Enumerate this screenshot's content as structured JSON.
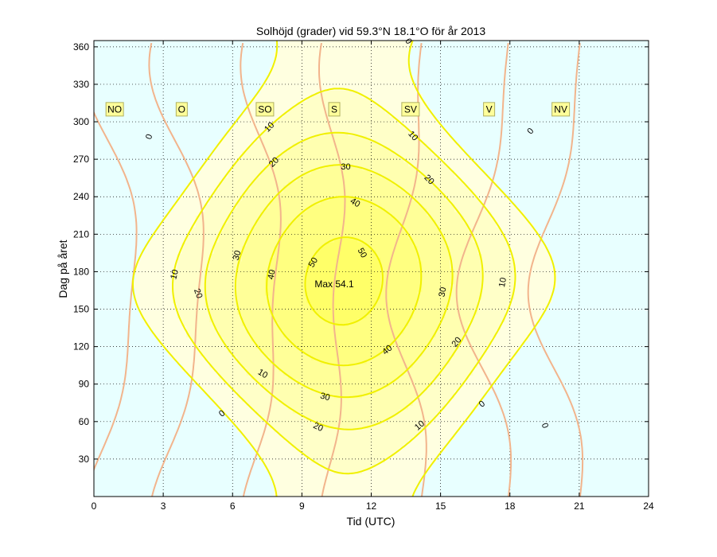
{
  "chart_data": {
    "type": "contour",
    "title": "Solhöjd (grader) vid 59.3°N 18.1°O för år 2013",
    "xlabel": "Tid (UTC)",
    "ylabel": "Dag på året",
    "xlim": [
      0,
      24
    ],
    "ylim": [
      0,
      365
    ],
    "xticks": [
      0,
      3,
      6,
      9,
      12,
      15,
      18,
      21,
      24
    ],
    "yticks": [
      30,
      60,
      90,
      120,
      150,
      180,
      210,
      240,
      270,
      300,
      330,
      360
    ],
    "grid": true,
    "night_color": "#e8ffff",
    "day_fill_colors": [
      "#ffffe0",
      "#ffffc8",
      "#ffffb0",
      "#ffff98",
      "#ffff80",
      "#ffff68"
    ],
    "contour_color": "#f0f000",
    "azimuth_line_color": "#f2b48c",
    "contour_levels": [
      0,
      10,
      20,
      30,
      40,
      50
    ],
    "contour_labels": [
      {
        "text": "0",
        "x": 2.4,
        "y": 172,
        "rot": -70
      },
      {
        "text": "0",
        "x": 5.55,
        "y": 520,
        "rot": -40
      },
      {
        "text": "0",
        "x": 16.8,
        "y": 508,
        "rot": -40
      },
      {
        "text": "0",
        "x": 19.5,
        "y": 535,
        "rot": 70
      },
      {
        "text": "0",
        "x": 18.9,
        "y": 165,
        "rot": -50
      },
      {
        "text": "0",
        "x": 13.6,
        "y": 52,
        "rot": 60
      },
      {
        "text": "10",
        "x": 3.5,
        "y": 345,
        "rot": -75
      },
      {
        "text": "10",
        "x": 7.3,
        "y": 470,
        "rot": 30
      },
      {
        "text": "10",
        "x": 14.1,
        "y": 535,
        "rot": -40
      },
      {
        "text": "10",
        "x": 17.7,
        "y": 355,
        "rot": -80
      },
      {
        "text": "10",
        "x": 13.8,
        "y": 171,
        "rot": 50
      },
      {
        "text": "10",
        "x": 7.6,
        "y": 160,
        "rot": -45
      },
      {
        "text": "20",
        "x": 4.5,
        "y": 369,
        "rot": 70
      },
      {
        "text": "20",
        "x": 9.7,
        "y": 537,
        "rot": 25
      },
      {
        "text": "20",
        "x": 15.7,
        "y": 430,
        "rot": -50
      },
      {
        "text": "20",
        "x": 14.5,
        "y": 226,
        "rot": 45
      },
      {
        "text": "20",
        "x": 7.8,
        "y": 204,
        "rot": -45
      },
      {
        "text": "30",
        "x": 6.2,
        "y": 321,
        "rot": -75
      },
      {
        "text": "30",
        "x": 10.0,
        "y": 499,
        "rot": 15
      },
      {
        "text": "30",
        "x": 15.1,
        "y": 367,
        "rot": -80
      },
      {
        "text": "30",
        "x": 10.9,
        "y": 210,
        "rot": 0
      },
      {
        "text": "40",
        "x": 7.7,
        "y": 345,
        "rot": -80
      },
      {
        "text": "40",
        "x": 12.7,
        "y": 440,
        "rot": -40
      },
      {
        "text": "40",
        "x": 11.3,
        "y": 255,
        "rot": 30
      },
      {
        "text": "50",
        "x": 9.5,
        "y": 330,
        "rot": -60
      },
      {
        "text": "50",
        "x": 11.6,
        "y": 318,
        "rot": 60
      }
    ],
    "direction_labels": [
      {
        "text": "NO",
        "hour": 0.9
      },
      {
        "text": "O",
        "hour": 3.8
      },
      {
        "text": "SO",
        "hour": 7.4
      },
      {
        "text": "S",
        "hour": 10.4
      },
      {
        "text": "SV",
        "hour": 13.7
      },
      {
        "text": "V",
        "hour": 17.1
      },
      {
        "text": "NV",
        "hour": 20.2
      }
    ],
    "max_label": {
      "text": "Max 54.1",
      "hour": 10.4,
      "day": 170
    }
  }
}
